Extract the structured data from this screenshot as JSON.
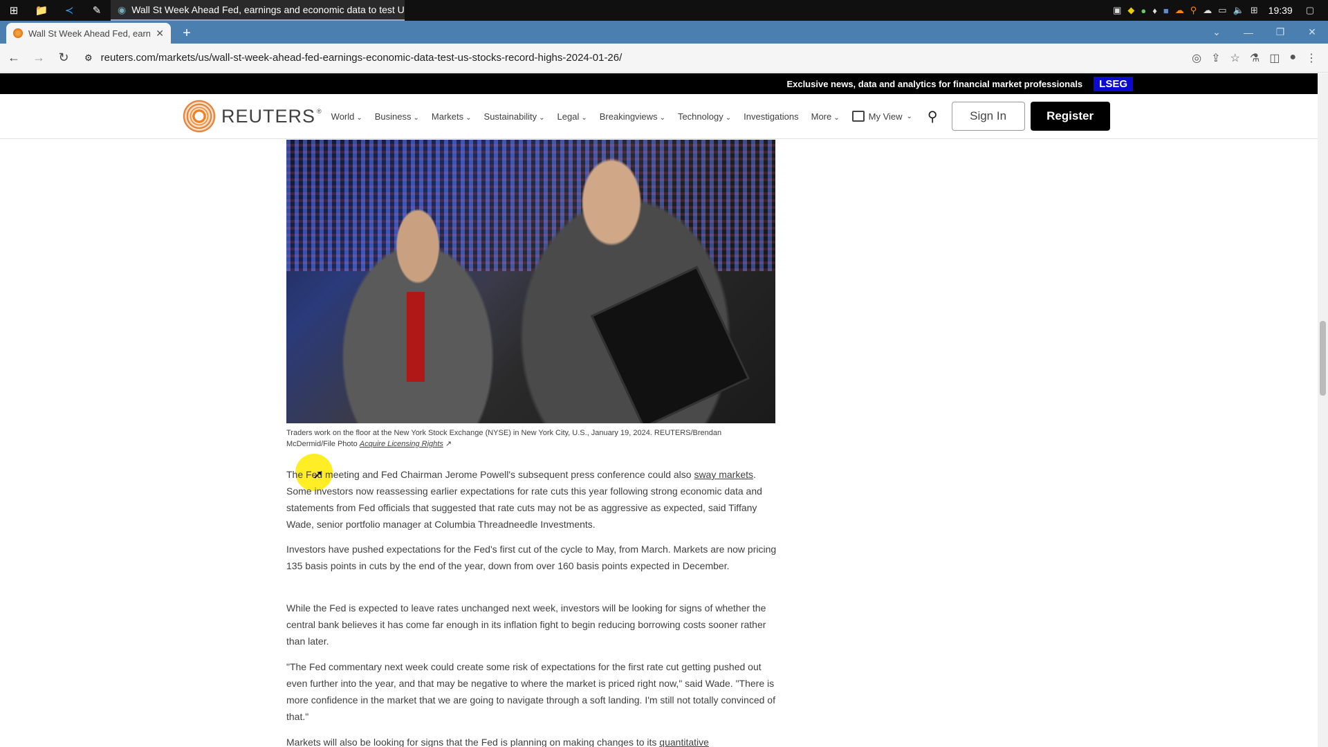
{
  "taskbar": {
    "active_window_title": "Wall St Week Ahead Fed, earnings and economic data to test US s...",
    "clock": "19:39"
  },
  "browser": {
    "tab_title": "Wall St Week Ahead Fed, earn",
    "url": "reuters.com/markets/us/wall-st-week-ahead-fed-earnings-economic-data-test-us-stocks-record-highs-2024-01-26/"
  },
  "promo": {
    "text": "Exclusive news, data and analytics for financial market professionals",
    "badge": "LSEG"
  },
  "header": {
    "logo": "REUTERS",
    "nav": [
      "World",
      "Business",
      "Markets",
      "Sustainability",
      "Legal",
      "Breakingviews",
      "Technology",
      "Investigations",
      "More"
    ],
    "my_view": "My View",
    "sign_in": "Sign In",
    "register": "Register"
  },
  "article": {
    "caption": "Traders work on the floor at the New York Stock Exchange (NYSE) in New York City, U.S., January 19, 2024. REUTERS/Brendan McDermid/File Photo",
    "caption_link": "Acquire Licensing Rights",
    "p1_a": "The Fed meeting and Fed Chairman Jerome Powell's subsequent press conference could also ",
    "p1_link": "sway markets",
    "p1_b": ". Some investors now reassessing earlier expectations for rate cuts this year following strong economic data and statements from Fed officials that suggested that rate cuts may not be as aggressive as expected, said Tiffany Wade, senior portfolio manager at Columbia Threadneedle Investments.",
    "p2": "Investors have pushed expectations for the Fed's first cut of the cycle to May, from March. Markets are now pricing 135 basis points in cuts by the end of the year, down from over 160 basis points expected in December.",
    "p3": "While the Fed is expected to leave rates unchanged next week, investors will be looking for signs of whether the central bank believes it has come far enough in its inflation fight to begin reducing borrowing costs sooner rather than later.",
    "p4": "\"The Fed commentary next week could create some risk of expectations for the first rate cut getting pushed out even further into the year, and that may be negative to where the market is priced right now,\" said Wade. \"There is more confidence in the market that we are going to navigate through a soft landing. I'm still not totally convinced of that.\"",
    "p5_a": "Markets will also be looking for signs that the Fed is planning on making changes to its ",
    "p5_link": "quantitative"
  }
}
